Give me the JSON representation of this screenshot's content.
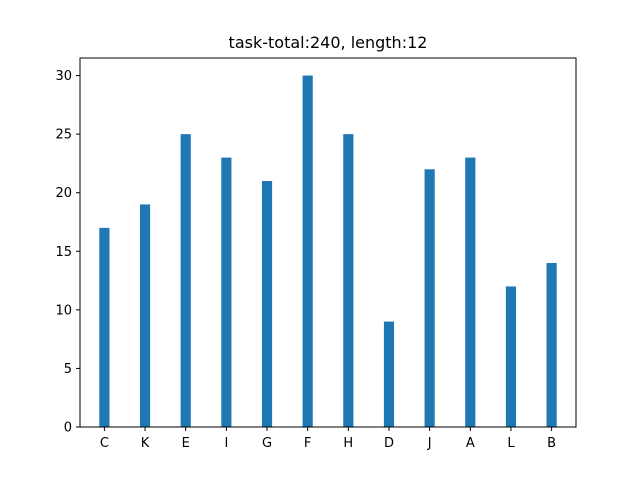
{
  "chart_data": {
    "type": "bar",
    "title": "task-total:240, length:12",
    "xlabel": "",
    "ylabel": "",
    "categories": [
      "C",
      "K",
      "E",
      "I",
      "G",
      "F",
      "H",
      "D",
      "J",
      "A",
      "L",
      "B"
    ],
    "x_positions": [
      0,
      1,
      2,
      3,
      4,
      5,
      6,
      7,
      8,
      9,
      10,
      11
    ],
    "series": [
      {
        "values": [
          17,
          19,
          25,
          23,
          21,
          30,
          25,
          9,
          22,
          23,
          12,
          14
        ]
      }
    ],
    "xlim": [
      -0.6,
      11.6
    ],
    "ylim": [
      0,
      31.5
    ],
    "y_ticks": [
      0,
      5,
      10,
      15,
      20,
      25,
      30
    ],
    "bar_color": "#1f77b4",
    "grid": false,
    "legend": "none"
  }
}
